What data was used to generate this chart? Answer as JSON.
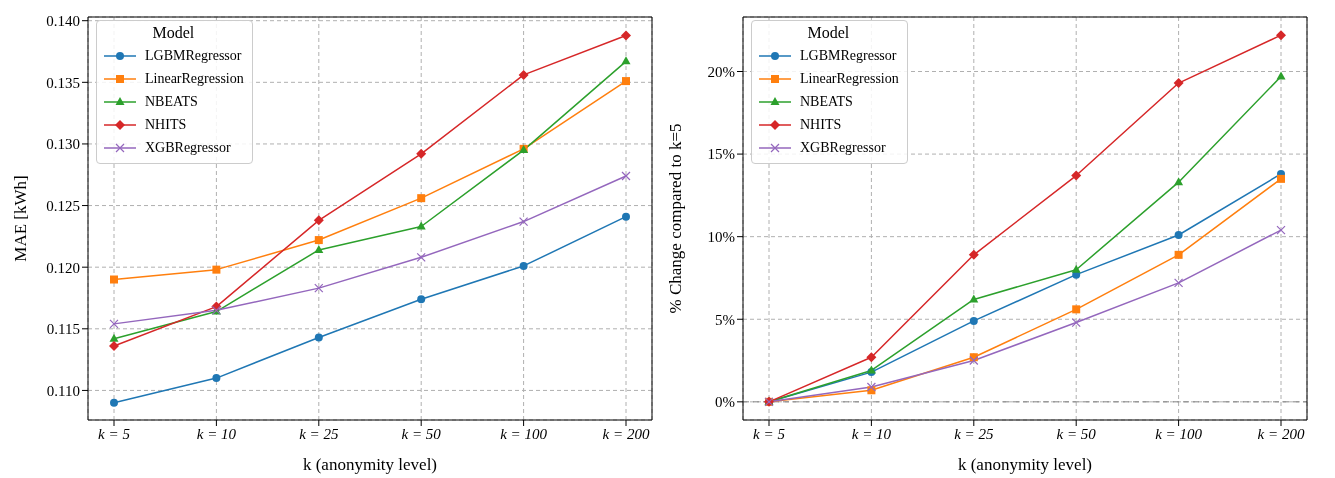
{
  "chart_data": [
    {
      "type": "line",
      "categories": [
        "k = 5",
        "k = 10",
        "k = 25",
        "k = 50",
        "k = 100",
        "k = 200"
      ],
      "xlabel": "k (anonymity level)",
      "ylabel": "MAE [kWh]",
      "legend_title": "Model",
      "legend": "top left",
      "grid": true,
      "line_style": "solid",
      "ylim": [
        0.1076,
        0.1403
      ],
      "yticks": [
        {
          "value": 0.11,
          "label": "0.110"
        },
        {
          "value": 0.115,
          "label": "0.115"
        },
        {
          "value": 0.12,
          "label": "0.120"
        },
        {
          "value": 0.125,
          "label": "0.125"
        },
        {
          "value": 0.13,
          "label": "0.130"
        },
        {
          "value": 0.135,
          "label": "0.135"
        },
        {
          "value": 0.14,
          "label": "0.140"
        }
      ],
      "series": [
        {
          "name": "LGBMRegressor",
          "color": "#1f77b4",
          "marker": "circle",
          "values": [
            0.109,
            0.111,
            0.1143,
            0.1174,
            0.1201,
            0.1241
          ]
        },
        {
          "name": "LinearRegression",
          "color": "#ff7f0e",
          "marker": "square",
          "values": [
            0.119,
            0.1198,
            0.1222,
            0.1256,
            0.1296,
            0.1351
          ]
        },
        {
          "name": "NBEATS",
          "color": "#2ca02c",
          "marker": "triangle",
          "values": [
            0.1142,
            0.1164,
            0.1214,
            0.1233,
            0.1295,
            0.1367
          ]
        },
        {
          "name": "NHITS",
          "color": "#d62728",
          "marker": "diamond",
          "values": [
            0.1136,
            0.1168,
            0.1238,
            0.1292,
            0.1356,
            0.1388
          ]
        },
        {
          "name": "XGBRegressor",
          "color": "#9467bd",
          "marker": "cross",
          "values": [
            0.1154,
            0.1165,
            0.1183,
            0.1208,
            0.1237,
            0.1274
          ]
        }
      ]
    },
    {
      "type": "line",
      "categories": [
        "k = 5",
        "k = 10",
        "k = 25",
        "k = 50",
        "k = 100",
        "k = 200"
      ],
      "xlabel": "k (anonymity level)",
      "ylabel": "% Change compared to k=5",
      "legend_title": "Model",
      "legend": "top left",
      "grid": true,
      "line_style": "solid",
      "ylim": [
        -1.1,
        23.3
      ],
      "yticks": [
        {
          "value": 0,
          "label": "0%"
        },
        {
          "value": 5,
          "label": "5%"
        },
        {
          "value": 10,
          "label": "10%"
        },
        {
          "value": 15,
          "label": "15%"
        },
        {
          "value": 20,
          "label": "20%"
        }
      ],
      "ref_lines": [
        {
          "axis": "y",
          "value": 0,
          "color": "#808080",
          "line_style": "dashed"
        }
      ],
      "series": [
        {
          "name": "LGBMRegressor",
          "color": "#1f77b4",
          "marker": "circle",
          "values": [
            0,
            1.8,
            4.9,
            7.7,
            10.1,
            13.8
          ]
        },
        {
          "name": "LinearRegression",
          "color": "#ff7f0e",
          "marker": "square",
          "values": [
            0,
            0.7,
            2.7,
            5.6,
            8.9,
            13.5
          ]
        },
        {
          "name": "NBEATS",
          "color": "#2ca02c",
          "marker": "triangle",
          "values": [
            0,
            1.9,
            6.2,
            8.0,
            13.3,
            19.7
          ]
        },
        {
          "name": "NHITS",
          "color": "#d62728",
          "marker": "diamond",
          "values": [
            0,
            2.7,
            8.9,
            13.7,
            19.3,
            22.2
          ]
        },
        {
          "name": "XGBRegressor",
          "color": "#9467bd",
          "marker": "cross",
          "values": [
            0,
            0.9,
            2.5,
            4.8,
            7.2,
            10.4
          ]
        }
      ]
    }
  ]
}
